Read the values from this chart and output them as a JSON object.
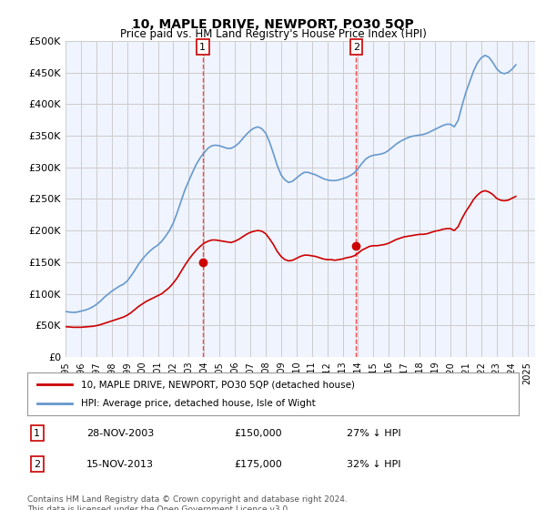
{
  "title": "10, MAPLE DRIVE, NEWPORT, PO30 5QP",
  "subtitle": "Price paid vs. HM Land Registry's House Price Index (HPI)",
  "ylabel_ticks": [
    "£0",
    "£50K",
    "£100K",
    "£150K",
    "£200K",
    "£250K",
    "£300K",
    "£350K",
    "£400K",
    "£450K",
    "£500K"
  ],
  "ytick_values": [
    0,
    50000,
    100000,
    150000,
    200000,
    250000,
    300000,
    350000,
    400000,
    450000,
    500000
  ],
  "ylim": [
    0,
    500000
  ],
  "xlim_start": 1995.0,
  "xlim_end": 2025.5,
  "background_color": "#ffffff",
  "plot_bg_color": "#f0f4ff",
  "grid_color": "#cccccc",
  "hpi_color": "#6699cc",
  "price_color": "#cc0000",
  "vline_color": "#ff4444",
  "marker_box_color": "#cc0000",
  "transactions": [
    {
      "x": 2003.91,
      "price": 150000,
      "label": "1",
      "date": "28-NOV-2003",
      "pct": "27% ↓ HPI"
    },
    {
      "x": 2013.88,
      "price": 175000,
      "label": "2",
      "date": "15-NOV-2013",
      "pct": "32% ↓ HPI"
    }
  ],
  "legend_line1": "10, MAPLE DRIVE, NEWPORT, PO30 5QP (detached house)",
  "legend_line2": "HPI: Average price, detached house, Isle of Wight",
  "footer": "Contains HM Land Registry data © Crown copyright and database right 2024.\nThis data is licensed under the Open Government Licence v3.0.",
  "hpi_data": {
    "years": [
      1995.0,
      1995.25,
      1995.5,
      1995.75,
      1996.0,
      1996.25,
      1996.5,
      1996.75,
      1997.0,
      1997.25,
      1997.5,
      1997.75,
      1998.0,
      1998.25,
      1998.5,
      1998.75,
      1999.0,
      1999.25,
      1999.5,
      1999.75,
      2000.0,
      2000.25,
      2000.5,
      2000.75,
      2001.0,
      2001.25,
      2001.5,
      2001.75,
      2002.0,
      2002.25,
      2002.5,
      2002.75,
      2003.0,
      2003.25,
      2003.5,
      2003.75,
      2004.0,
      2004.25,
      2004.5,
      2004.75,
      2005.0,
      2005.25,
      2005.5,
      2005.75,
      2006.0,
      2006.25,
      2006.5,
      2006.75,
      2007.0,
      2007.25,
      2007.5,
      2007.75,
      2008.0,
      2008.25,
      2008.5,
      2008.75,
      2009.0,
      2009.25,
      2009.5,
      2009.75,
      2010.0,
      2010.25,
      2010.5,
      2010.75,
      2011.0,
      2011.25,
      2011.5,
      2011.75,
      2012.0,
      2012.25,
      2012.5,
      2012.75,
      2013.0,
      2013.25,
      2013.5,
      2013.75,
      2014.0,
      2014.25,
      2014.5,
      2014.75,
      2015.0,
      2015.25,
      2015.5,
      2015.75,
      2016.0,
      2016.25,
      2016.5,
      2016.75,
      2017.0,
      2017.25,
      2017.5,
      2017.75,
      2018.0,
      2018.25,
      2018.5,
      2018.75,
      2019.0,
      2019.25,
      2019.5,
      2019.75,
      2020.0,
      2020.25,
      2020.5,
      2020.75,
      2021.0,
      2021.25,
      2021.5,
      2021.75,
      2022.0,
      2022.25,
      2022.5,
      2022.75,
      2023.0,
      2023.25,
      2023.5,
      2023.75,
      2024.0,
      2024.25
    ],
    "values": [
      72000,
      71000,
      70500,
      71000,
      72500,
      74000,
      76000,
      79000,
      83000,
      88000,
      94000,
      99000,
      104000,
      108000,
      112000,
      115000,
      120000,
      128000,
      137000,
      147000,
      155000,
      162000,
      168000,
      173000,
      177000,
      183000,
      191000,
      200000,
      212000,
      228000,
      246000,
      264000,
      278000,
      292000,
      305000,
      315000,
      323000,
      330000,
      334000,
      335000,
      334000,
      332000,
      330000,
      330000,
      333000,
      338000,
      345000,
      352000,
      358000,
      362000,
      364000,
      361000,
      354000,
      340000,
      322000,
      303000,
      288000,
      280000,
      276000,
      278000,
      283000,
      288000,
      292000,
      292000,
      290000,
      288000,
      285000,
      282000,
      280000,
      279000,
      279000,
      280000,
      282000,
      284000,
      287000,
      291000,
      298000,
      306000,
      313000,
      317000,
      319000,
      320000,
      321000,
      323000,
      327000,
      332000,
      337000,
      341000,
      344000,
      347000,
      349000,
      350000,
      351000,
      352000,
      354000,
      357000,
      360000,
      363000,
      366000,
      368000,
      368000,
      364000,
      374000,
      397000,
      418000,
      435000,
      452000,
      465000,
      473000,
      477000,
      474000,
      466000,
      456000,
      450000,
      448000,
      450000,
      455000,
      462000
    ]
  },
  "price_data": {
    "years": [
      1995.0,
      1995.25,
      1995.5,
      1995.75,
      1996.0,
      1996.25,
      1996.5,
      1996.75,
      1997.0,
      1997.25,
      1997.5,
      1997.75,
      1998.0,
      1998.25,
      1998.5,
      1998.75,
      1999.0,
      1999.25,
      1999.5,
      1999.75,
      2000.0,
      2000.25,
      2000.5,
      2000.75,
      2001.0,
      2001.25,
      2001.5,
      2001.75,
      2002.0,
      2002.25,
      2002.5,
      2002.75,
      2003.0,
      2003.25,
      2003.5,
      2003.75,
      2004.0,
      2004.25,
      2004.5,
      2004.75,
      2005.0,
      2005.25,
      2005.5,
      2005.75,
      2006.0,
      2006.25,
      2006.5,
      2006.75,
      2007.0,
      2007.25,
      2007.5,
      2007.75,
      2008.0,
      2008.25,
      2008.5,
      2008.75,
      2009.0,
      2009.25,
      2009.5,
      2009.75,
      2010.0,
      2010.25,
      2010.5,
      2010.75,
      2011.0,
      2011.25,
      2011.5,
      2011.75,
      2012.0,
      2012.25,
      2012.5,
      2012.75,
      2013.0,
      2013.25,
      2013.5,
      2013.75,
      2014.0,
      2014.25,
      2014.5,
      2014.75,
      2015.0,
      2015.25,
      2015.5,
      2015.75,
      2016.0,
      2016.25,
      2016.5,
      2016.75,
      2017.0,
      2017.25,
      2017.5,
      2017.75,
      2018.0,
      2018.25,
      2018.5,
      2018.75,
      2019.0,
      2019.25,
      2019.5,
      2019.75,
      2020.0,
      2020.25,
      2020.5,
      2020.75,
      2021.0,
      2021.25,
      2021.5,
      2021.75,
      2022.0,
      2022.25,
      2022.5,
      2022.75,
      2023.0,
      2023.25,
      2023.5,
      2023.75,
      2024.0,
      2024.25
    ],
    "values": [
      48000,
      47500,
      47000,
      47000,
      47000,
      47500,
      48000,
      48500,
      49500,
      51000,
      53000,
      55000,
      57000,
      59000,
      61000,
      63000,
      66000,
      70000,
      75000,
      80000,
      84000,
      88000,
      91000,
      94000,
      97000,
      100000,
      105000,
      110000,
      117000,
      125000,
      135000,
      145000,
      154000,
      162000,
      169000,
      175000,
      180000,
      183000,
      185000,
      185000,
      184000,
      183000,
      182000,
      181000,
      183000,
      186000,
      190000,
      194000,
      197000,
      199000,
      200000,
      199000,
      195000,
      187000,
      178000,
      167000,
      159000,
      154000,
      152000,
      153000,
      156000,
      159000,
      161000,
      161000,
      160000,
      159000,
      157000,
      155000,
      154000,
      154000,
      153000,
      154000,
      155000,
      157000,
      158000,
      160000,
      164000,
      169000,
      172000,
      175000,
      176000,
      176000,
      177000,
      178000,
      180000,
      183000,
      186000,
      188000,
      190000,
      191000,
      192000,
      193000,
      194000,
      194000,
      195000,
      197000,
      199000,
      200000,
      202000,
      203000,
      203000,
      200000,
      206000,
      219000,
      230000,
      239000,
      249000,
      256000,
      261000,
      263000,
      261000,
      257000,
      251000,
      248000,
      247000,
      248000,
      251000,
      254000
    ]
  }
}
